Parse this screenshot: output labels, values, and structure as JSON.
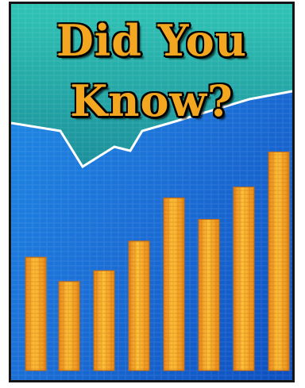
{
  "poster": {
    "headline_line1": "Did You",
    "headline_line2": "Know?"
  },
  "colors": {
    "bar": "#f4a71c",
    "background": "#1c7ede",
    "teal": "#27b7ad",
    "headline": "#f3a61f"
  },
  "chart_data": {
    "type": "bar",
    "values": [
      42,
      33,
      37,
      48,
      64,
      56,
      68,
      81
    ]
  }
}
